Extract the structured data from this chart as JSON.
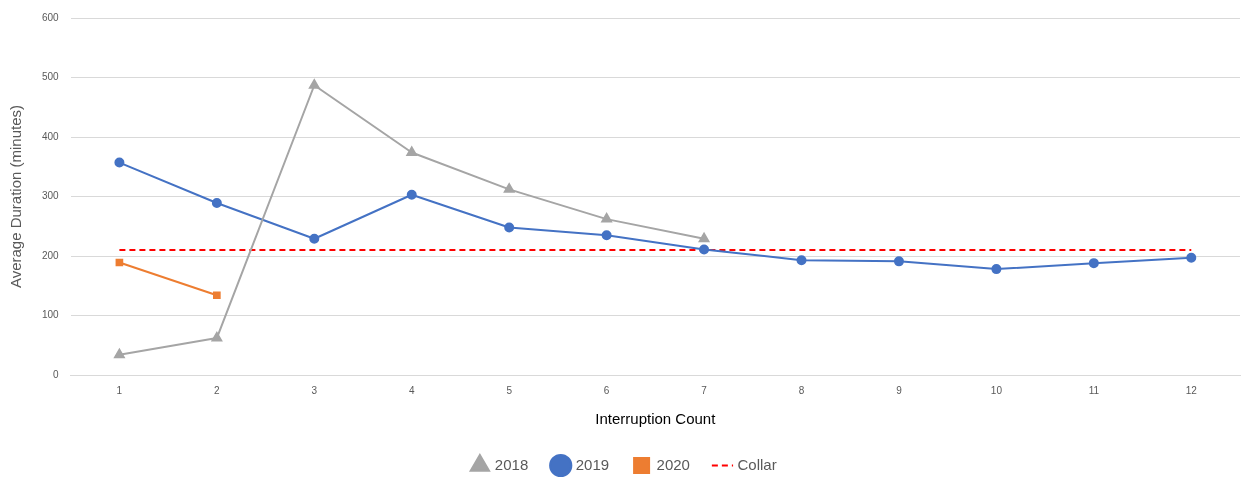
{
  "chart_data": {
    "type": "line",
    "xlabel": "Interruption Count",
    "ylabel": "Average Duration (minutes)",
    "categories": [
      "1",
      "2",
      "3",
      "4",
      "5",
      "6",
      "7",
      "8",
      "9",
      "10",
      "11",
      "12"
    ],
    "series": [
      {
        "name": "2018",
        "color": "#a5a5a5",
        "marker": "triangle",
        "values": [
          34,
          62,
          487,
          374,
          312,
          262,
          229,
          null,
          null,
          null,
          null,
          null
        ]
      },
      {
        "name": "2019",
        "color": "#4472c4",
        "marker": "circle",
        "values": [
          357,
          289,
          229,
          303,
          248,
          235,
          211,
          193,
          191,
          178,
          188,
          197
        ]
      },
      {
        "name": "2020",
        "color": "#ed7d31",
        "marker": "square",
        "values": [
          189,
          134,
          null,
          null,
          null,
          null,
          null,
          null,
          null,
          null,
          null,
          null
        ]
      },
      {
        "name": "Collar",
        "color": "#ff0000",
        "marker": "none",
        "line_style": "dashed",
        "values": [
          210,
          210,
          210,
          210,
          210,
          210,
          210,
          210,
          210,
          210,
          210,
          210
        ]
      }
    ],
    "ylim": [
      0,
      600
    ],
    "yticks": [
      0,
      100,
      200,
      300,
      400,
      500,
      600
    ],
    "grid": "y",
    "legend": "bottom"
  }
}
